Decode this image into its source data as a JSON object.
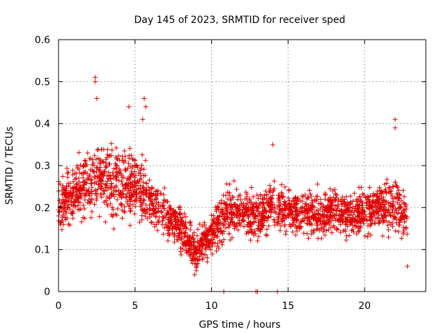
{
  "chart_data": {
    "type": "scatter",
    "title": "Day 145 of 2023, SRMTID for receiver sped",
    "xlabel": "GPS time / hours",
    "ylabel": "SRMTID / TECUs",
    "xlim": [
      0,
      24
    ],
    "ylim": [
      0,
      0.6
    ],
    "xticks": [
      0,
      5,
      10,
      15,
      20
    ],
    "xtick_labels": [
      "0",
      "5",
      "10",
      "15",
      "20"
    ],
    "yticks": [
      0,
      0.1,
      0.2,
      0.3,
      0.4,
      0.5,
      0.6
    ],
    "ytick_labels": [
      "0",
      "0.1",
      "0.2",
      "0.3",
      "0.4",
      "0.5",
      "0.6"
    ],
    "grid": true,
    "marker": "+",
    "color": "#e00000",
    "series": [
      {
        "name": "sped",
        "profile": {
          "description": "approximate mean and spread (TECUs) per hour-wide band, estimated from the plot",
          "hours": [
            0,
            1,
            2,
            3,
            4,
            5,
            6,
            7,
            8,
            9,
            10,
            11,
            12,
            13,
            14,
            15,
            16,
            17,
            18,
            19,
            20,
            21,
            22,
            22.8
          ],
          "mean": [
            0.21,
            0.23,
            0.26,
            0.27,
            0.25,
            0.26,
            0.22,
            0.18,
            0.15,
            0.09,
            0.14,
            0.19,
            0.19,
            0.18,
            0.2,
            0.19,
            0.19,
            0.18,
            0.19,
            0.18,
            0.19,
            0.2,
            0.21,
            0.16
          ],
          "spread": [
            0.06,
            0.06,
            0.07,
            0.08,
            0.08,
            0.08,
            0.06,
            0.05,
            0.05,
            0.04,
            0.05,
            0.06,
            0.05,
            0.05,
            0.06,
            0.05,
            0.05,
            0.05,
            0.05,
            0.05,
            0.05,
            0.06,
            0.07,
            0.05
          ]
        },
        "highlights": [
          {
            "x": 2.4,
            "y": 0.51
          },
          {
            "x": 2.4,
            "y": 0.5
          },
          {
            "x": 2.5,
            "y": 0.46
          },
          {
            "x": 4.6,
            "y": 0.44
          },
          {
            "x": 5.6,
            "y": 0.46
          },
          {
            "x": 5.7,
            "y": 0.44
          },
          {
            "x": 5.5,
            "y": 0.41
          },
          {
            "x": 22.0,
            "y": 0.41
          },
          {
            "x": 22.0,
            "y": 0.39
          },
          {
            "x": 14.0,
            "y": 0.35
          },
          {
            "x": 8.9,
            "y": 0.04
          },
          {
            "x": 9.0,
            "y": 0.05
          },
          {
            "x": 10.8,
            "y": 0.0
          },
          {
            "x": 12.9,
            "y": 0.0
          },
          {
            "x": 13.0,
            "y": 0.0
          },
          {
            "x": 14.3,
            "y": 0.0
          },
          {
            "x": 22.8,
            "y": 0.06
          }
        ]
      }
    ]
  }
}
